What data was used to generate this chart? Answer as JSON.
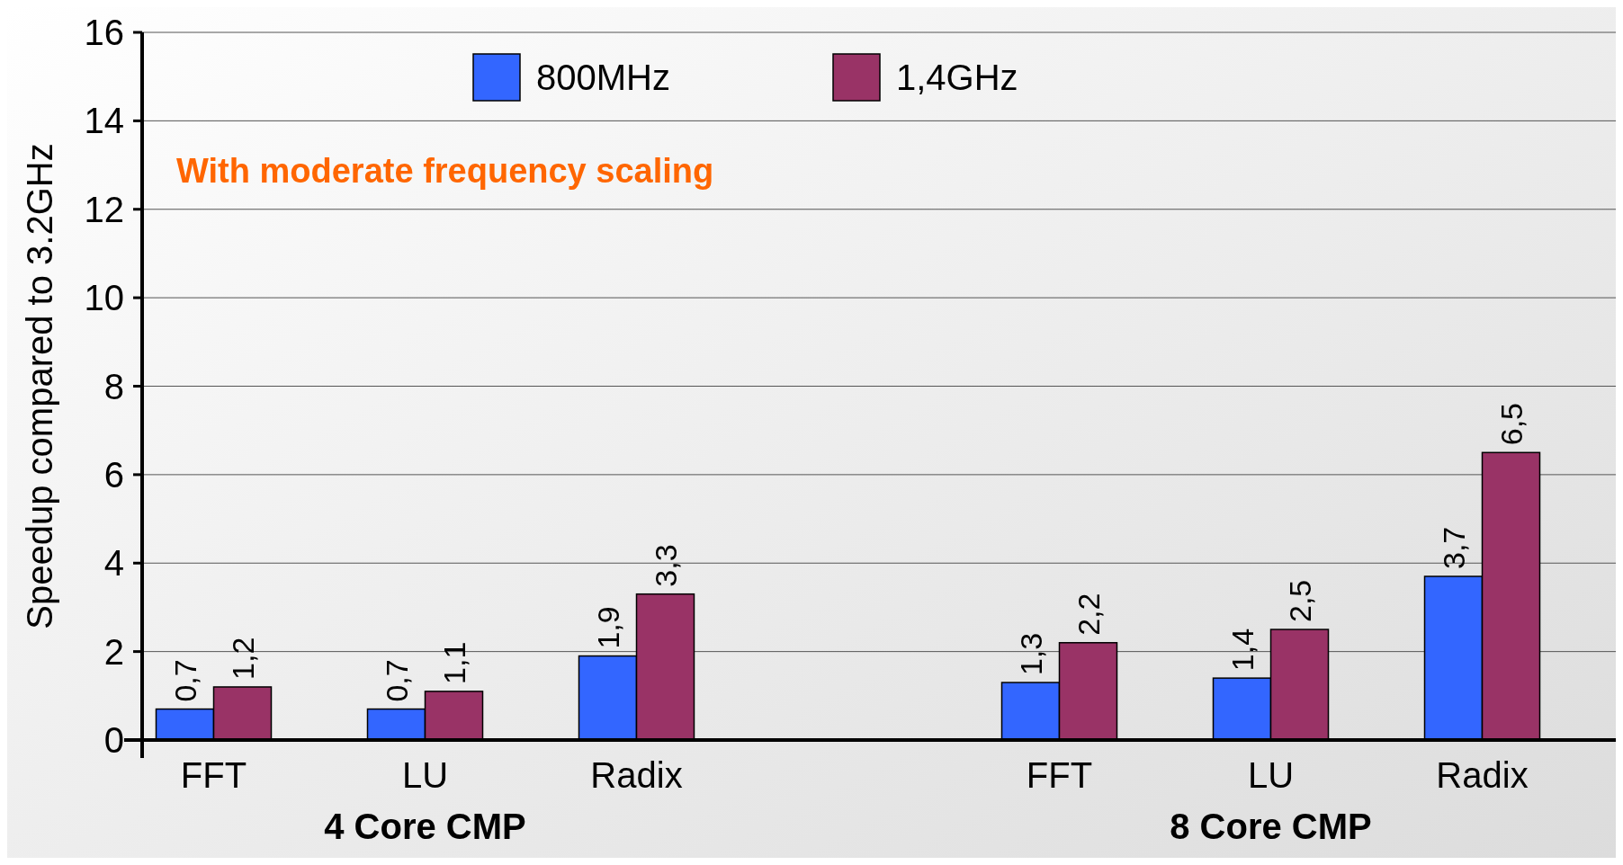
{
  "chart_data": {
    "type": "bar",
    "ylabel": "Speedup compared to 3.2GHz",
    "categories": [
      "FFT",
      "LU",
      "Radix",
      "FFT",
      "LU",
      "Radix"
    ],
    "series": [
      {
        "name": "800MHz",
        "color": "#3366ff",
        "values": [
          0.7,
          0.7,
          1.9,
          1.3,
          1.4,
          3.7
        ],
        "value_labels": [
          "0,7",
          "0,7",
          "1,9",
          "1,3",
          "1,4",
          "3,7"
        ]
      },
      {
        "name": "1,4GHz",
        "color": "#993366",
        "values": [
          1.2,
          1.1,
          3.3,
          2.2,
          2.5,
          6.5
        ],
        "value_labels": [
          "1,2",
          "1,1",
          "3,3",
          "2,2",
          "2,5",
          "6,5"
        ]
      }
    ],
    "ylim": [
      0,
      16
    ],
    "yticks": [
      0,
      2,
      4,
      6,
      8,
      10,
      12,
      14,
      16
    ],
    "grid": "y",
    "legend": "top",
    "annotations": [
      "With moderate frequency scaling",
      "4 Core CMP",
      "8 Core CMP"
    ]
  }
}
